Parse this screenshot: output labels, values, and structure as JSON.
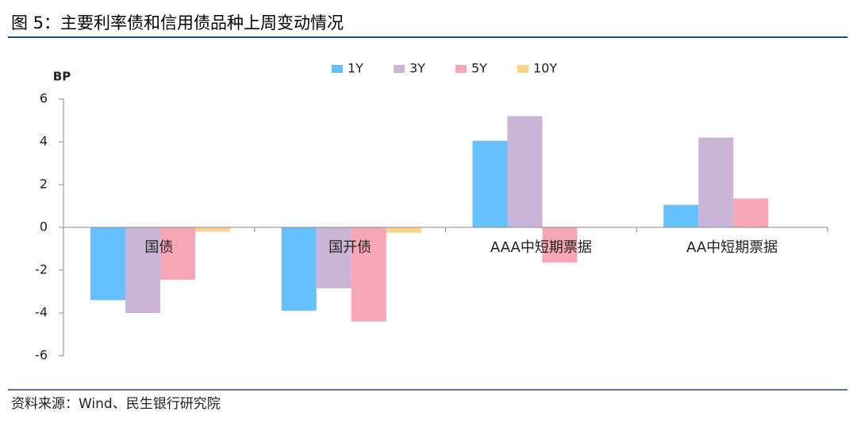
{
  "chart_data": {
    "type": "bar",
    "title": "图 5：主要利率债和信用债品种上周变动情况",
    "source": "资料来源：Wind、民生银行研究院",
    "y_label": "BP",
    "categories": [
      "国债",
      "国开债",
      "AAA中短期票据",
      "AA中短期票据"
    ],
    "series": [
      {
        "name": "1Y",
        "color": "#66bfff",
        "values": [
          -3.4,
          -3.9,
          4.05,
          1.05
        ]
      },
      {
        "name": "3Y",
        "color": "#c9b6d6",
        "values": [
          -4.0,
          -2.85,
          5.2,
          4.2
        ]
      },
      {
        "name": "5Y",
        "color": "#f7a6b5",
        "values": [
          -2.45,
          -4.4,
          -1.65,
          1.35
        ]
      },
      {
        "name": "10Y",
        "color": "#ffd28a",
        "values": [
          -0.2,
          -0.25,
          0,
          0
        ]
      }
    ],
    "ylim": [
      -6,
      6
    ],
    "yticks": [
      -6,
      -4,
      -2,
      0,
      2,
      4,
      6
    ],
    "grid": false
  }
}
